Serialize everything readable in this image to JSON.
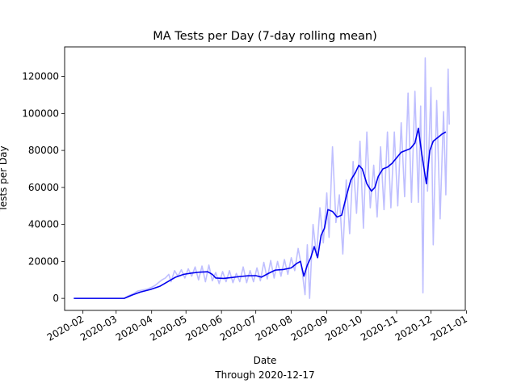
{
  "chart_data": {
    "type": "line",
    "title": "MA Tests per Day (7-day rolling mean)",
    "xlabel": "Date",
    "xlabel_sub": "Through 2020-12-17",
    "ylabel": "Tests per Day",
    "xlim": [
      "2020-01-16",
      "2020-12-31"
    ],
    "ylim": [
      -6500,
      136000
    ],
    "grid": false,
    "x_ticks": [
      "2020-02-01",
      "2020-03-01",
      "2020-04-01",
      "2020-05-01",
      "2020-06-01",
      "2020-07-01",
      "2020-08-01",
      "2020-09-01",
      "2020-10-01",
      "2020-11-01",
      "2020-12-01",
      "2021-01-01"
    ],
    "x_tick_labels": [
      "2020-02",
      "2020-03",
      "2020-04",
      "2020-05",
      "2020-06",
      "2020-07",
      "2020-08",
      "2020-09",
      "2020-10",
      "2020-11",
      "2020-12",
      "2021-01"
    ],
    "y_ticks": [
      0,
      20000,
      40000,
      60000,
      80000,
      100000,
      120000
    ],
    "y_tick_labels": [
      "0",
      "20000",
      "40000",
      "60000",
      "80000",
      "100000",
      "120000"
    ],
    "series": [
      {
        "kind": "daily",
        "color": "#bfbfff",
        "points": [
          [
            "2020-01-24",
            0
          ],
          [
            "2020-03-01",
            0
          ],
          [
            "2020-03-08",
            0
          ],
          [
            "2020-03-12",
            1500
          ],
          [
            "2020-03-16",
            2500
          ],
          [
            "2020-03-20",
            4000
          ],
          [
            "2020-03-24",
            4500
          ],
          [
            "2020-03-28",
            5000
          ],
          [
            "2020-04-01",
            6000
          ],
          [
            "2020-04-04",
            7000
          ],
          [
            "2020-04-07",
            8500
          ],
          [
            "2020-04-10",
            10000
          ],
          [
            "2020-04-13",
            11000
          ],
          [
            "2020-04-16",
            13000
          ],
          [
            "2020-04-18",
            9000
          ],
          [
            "2020-04-21",
            15000
          ],
          [
            "2020-04-24",
            12000
          ],
          [
            "2020-04-27",
            15500
          ],
          [
            "2020-04-30",
            11000
          ],
          [
            "2020-05-03",
            16000
          ],
          [
            "2020-05-06",
            12000
          ],
          [
            "2020-05-09",
            17000
          ],
          [
            "2020-05-12",
            10000
          ],
          [
            "2020-05-15",
            17500
          ],
          [
            "2020-05-18",
            9000
          ],
          [
            "2020-05-21",
            18000
          ],
          [
            "2020-05-24",
            9500
          ],
          [
            "2020-05-27",
            14000
          ],
          [
            "2020-05-30",
            8000
          ],
          [
            "2020-06-02",
            14500
          ],
          [
            "2020-06-05",
            9000
          ],
          [
            "2020-06-08",
            15000
          ],
          [
            "2020-06-11",
            8500
          ],
          [
            "2020-06-14",
            13500
          ],
          [
            "2020-06-17",
            9000
          ],
          [
            "2020-06-20",
            17000
          ],
          [
            "2020-06-23",
            8500
          ],
          [
            "2020-06-26",
            15000
          ],
          [
            "2020-06-29",
            9000
          ],
          [
            "2020-07-02",
            16500
          ],
          [
            "2020-07-05",
            9500
          ],
          [
            "2020-07-08",
            19500
          ],
          [
            "2020-07-11",
            10500
          ],
          [
            "2020-07-14",
            20500
          ],
          [
            "2020-07-17",
            11000
          ],
          [
            "2020-07-20",
            20000
          ],
          [
            "2020-07-23",
            12000
          ],
          [
            "2020-07-26",
            21000
          ],
          [
            "2020-07-29",
            13000
          ],
          [
            "2020-08-01",
            22000
          ],
          [
            "2020-08-04",
            15000
          ],
          [
            "2020-08-07",
            27000
          ],
          [
            "2020-08-10",
            17000
          ],
          [
            "2020-08-13",
            2000
          ],
          [
            "2020-08-15",
            29000
          ],
          [
            "2020-08-17",
            0
          ],
          [
            "2020-08-20",
            40000
          ],
          [
            "2020-08-23",
            23000
          ],
          [
            "2020-08-26",
            49000
          ],
          [
            "2020-08-29",
            30000
          ],
          [
            "2020-09-01",
            57000
          ],
          [
            "2020-09-03",
            33000
          ],
          [
            "2020-09-06",
            82000
          ],
          [
            "2020-09-09",
            41000
          ],
          [
            "2020-09-12",
            56000
          ],
          [
            "2020-09-15",
            24000
          ],
          [
            "2020-09-18",
            64000
          ],
          [
            "2020-09-21",
            35000
          ],
          [
            "2020-09-24",
            74000
          ],
          [
            "2020-09-27",
            46000
          ],
          [
            "2020-09-30",
            85000
          ],
          [
            "2020-10-03",
            38000
          ],
          [
            "2020-10-06",
            90000
          ],
          [
            "2020-10-09",
            49000
          ],
          [
            "2020-10-12",
            72000
          ],
          [
            "2020-10-15",
            44000
          ],
          [
            "2020-10-18",
            82000
          ],
          [
            "2020-10-21",
            48000
          ],
          [
            "2020-10-24",
            90000
          ],
          [
            "2020-10-27",
            49000
          ],
          [
            "2020-10-30",
            90000
          ],
          [
            "2020-11-02",
            50000
          ],
          [
            "2020-11-05",
            95000
          ],
          [
            "2020-11-08",
            55000
          ],
          [
            "2020-11-11",
            111000
          ],
          [
            "2020-11-14",
            52000
          ],
          [
            "2020-11-17",
            112000
          ],
          [
            "2020-11-20",
            52000
          ],
          [
            "2020-11-22",
            104000
          ],
          [
            "2020-11-24",
            3000
          ],
          [
            "2020-11-26",
            130000
          ],
          [
            "2020-11-28",
            58000
          ],
          [
            "2020-12-01",
            114000
          ],
          [
            "2020-12-03",
            29000
          ],
          [
            "2020-12-06",
            107000
          ],
          [
            "2020-12-09",
            43000
          ],
          [
            "2020-12-12",
            101000
          ],
          [
            "2020-12-14",
            56000
          ],
          [
            "2020-12-16",
            124000
          ],
          [
            "2020-12-17",
            94000
          ]
        ]
      },
      {
        "kind": "rolling_mean",
        "color": "#0000ee",
        "points": [
          [
            "2020-01-24",
            0
          ],
          [
            "2020-03-08",
            0
          ],
          [
            "2020-03-15",
            1800
          ],
          [
            "2020-03-22",
            3400
          ],
          [
            "2020-03-31",
            4800
          ],
          [
            "2020-04-08",
            6500
          ],
          [
            "2020-04-15",
            9000
          ],
          [
            "2020-04-22",
            11500
          ],
          [
            "2020-04-29",
            13000
          ],
          [
            "2020-05-06",
            13700
          ],
          [
            "2020-05-13",
            14200
          ],
          [
            "2020-05-20",
            14400
          ],
          [
            "2020-05-24",
            13000
          ],
          [
            "2020-05-27",
            11000
          ],
          [
            "2020-06-03",
            10800
          ],
          [
            "2020-06-10",
            11300
          ],
          [
            "2020-06-17",
            11800
          ],
          [
            "2020-06-24",
            12200
          ],
          [
            "2020-07-01",
            12300
          ],
          [
            "2020-07-06",
            11500
          ],
          [
            "2020-07-12",
            13500
          ],
          [
            "2020-07-18",
            15300
          ],
          [
            "2020-07-25",
            15600
          ],
          [
            "2020-08-01",
            16500
          ],
          [
            "2020-08-06",
            19000
          ],
          [
            "2020-08-09",
            20000
          ],
          [
            "2020-08-12",
            12000
          ],
          [
            "2020-08-15",
            18000
          ],
          [
            "2020-08-18",
            22000
          ],
          [
            "2020-08-21",
            28000
          ],
          [
            "2020-08-24",
            22000
          ],
          [
            "2020-08-27",
            34000
          ],
          [
            "2020-08-30",
            38000
          ],
          [
            "2020-09-02",
            48000
          ],
          [
            "2020-09-06",
            47000
          ],
          [
            "2020-09-10",
            44000
          ],
          [
            "2020-09-14",
            45000
          ],
          [
            "2020-09-18",
            55000
          ],
          [
            "2020-09-22",
            64000
          ],
          [
            "2020-09-26",
            68000
          ],
          [
            "2020-09-29",
            72000
          ],
          [
            "2020-10-02",
            70000
          ],
          [
            "2020-10-06",
            62000
          ],
          [
            "2020-10-10",
            58000
          ],
          [
            "2020-10-13",
            60000
          ],
          [
            "2020-10-16",
            66000
          ],
          [
            "2020-10-20",
            70000
          ],
          [
            "2020-10-24",
            71000
          ],
          [
            "2020-10-28",
            73000
          ],
          [
            "2020-11-01",
            76000
          ],
          [
            "2020-11-05",
            79000
          ],
          [
            "2020-11-09",
            80000
          ],
          [
            "2020-11-13",
            81000
          ],
          [
            "2020-11-17",
            84000
          ],
          [
            "2020-11-20",
            92000
          ],
          [
            "2020-11-23",
            78000
          ],
          [
            "2020-11-27",
            62000
          ],
          [
            "2020-11-30",
            80000
          ],
          [
            "2020-12-03",
            85000
          ],
          [
            "2020-12-07",
            87000
          ],
          [
            "2020-12-11",
            89000
          ],
          [
            "2020-12-14",
            90000
          ]
        ]
      }
    ]
  }
}
